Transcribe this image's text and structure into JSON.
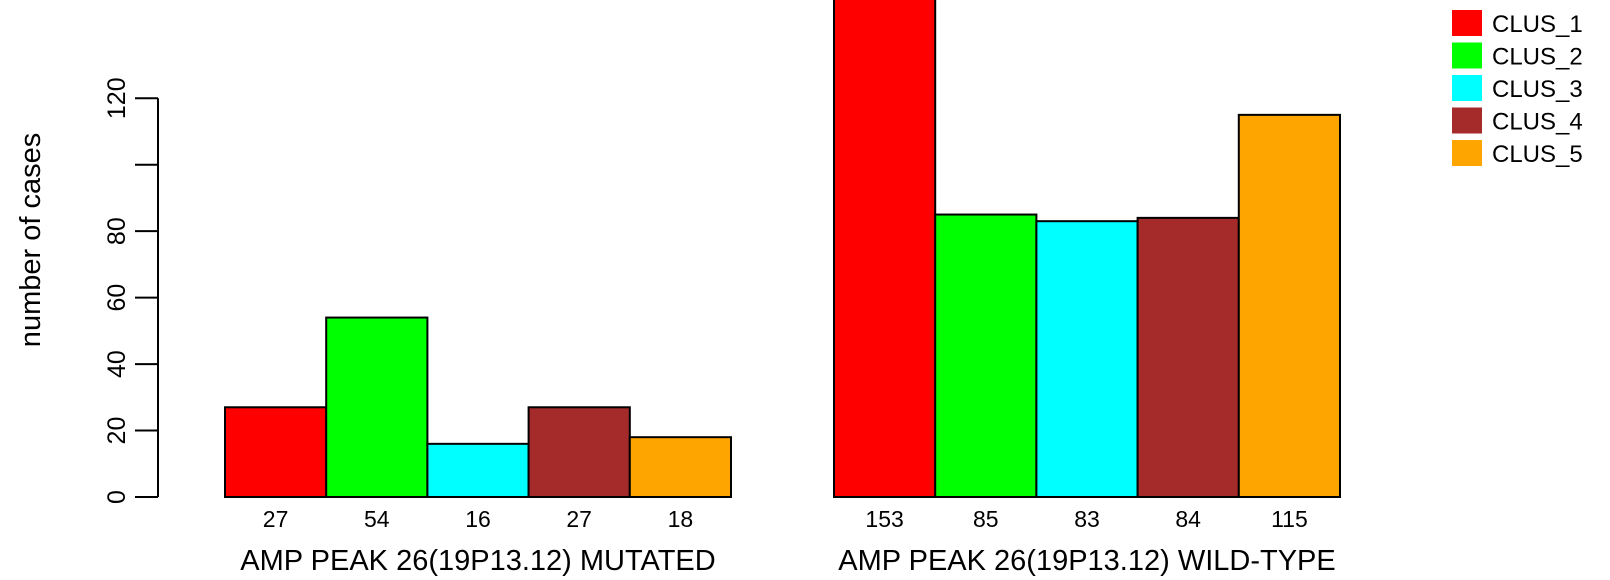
{
  "chart_data": {
    "type": "bar",
    "ylabel": "number of cases",
    "ylim": [
      0,
      150
    ],
    "yticks": [
      0,
      20,
      40,
      60,
      80,
      100,
      120
    ],
    "ytick_labels": [
      "0",
      "20",
      "40",
      "60",
      "80",
      "",
      "120"
    ],
    "groups": [
      {
        "label": "AMP PEAK 26(19P13.12) MUTATED",
        "values": [
          27,
          54,
          16,
          27,
          18
        ],
        "value_labels": [
          "27",
          "54",
          "16",
          "27",
          "18"
        ]
      },
      {
        "label": "AMP PEAK 26(19P13.12) WILD-TYPE",
        "values": [
          153,
          85,
          83,
          84,
          115
        ],
        "value_labels": [
          "153",
          "85",
          "83",
          "84",
          "115"
        ]
      }
    ],
    "series": [
      {
        "name": "CLUS_1",
        "color": "#ff0000"
      },
      {
        "name": "CLUS_2",
        "color": "#00ff00"
      },
      {
        "name": "CLUS_3",
        "color": "#00ffff"
      },
      {
        "name": "CLUS_4",
        "color": "#a52a2a"
      },
      {
        "name": "CLUS_5",
        "color": "#ffa500"
      }
    ],
    "legend_position": "top-right",
    "grid": false
  }
}
